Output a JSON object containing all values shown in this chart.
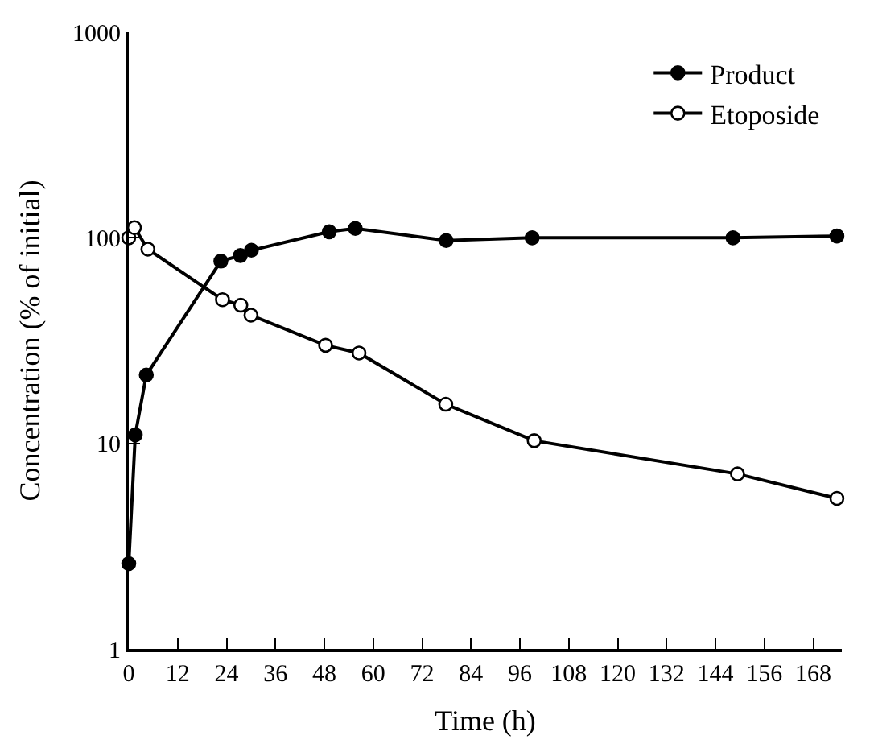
{
  "chart_data": {
    "type": "line",
    "xlabel": "Time (h)",
    "ylabel": "Concentration (% of initial)",
    "log": "y",
    "legend": "top right",
    "line_style": "solid",
    "xlim": [
      0,
      175
    ],
    "xticks": [
      0,
      12,
      24,
      36,
      48,
      60,
      72,
      84,
      96,
      108,
      120,
      132,
      144,
      156,
      168
    ],
    "ylim": [
      1,
      1000
    ],
    "yticks": [
      1,
      10,
      100,
      1000
    ],
    "series": [
      {
        "name": "Product",
        "color": "#000000",
        "marker": "circle",
        "x": [
          0,
          1.6,
          4.3,
          22.6,
          27.4,
          30.1,
          49.2,
          55.6,
          77.9,
          99,
          148.3,
          173.8
        ],
        "values": [
          2.6,
          11,
          21.5,
          77,
          82,
          87,
          107,
          111,
          97,
          100,
          100,
          102
        ]
      },
      {
        "name": "Etoposide",
        "color": "#000000",
        "marker": "circle-open",
        "x": [
          0,
          1.4,
          4.7,
          23,
          27.5,
          30,
          48.3,
          56.5,
          77.8,
          99.5,
          149.4,
          173.8
        ],
        "values": [
          100,
          112,
          88,
          50,
          47,
          42,
          30,
          27.5,
          15.5,
          10.3,
          7.1,
          5.4
        ]
      }
    ]
  }
}
